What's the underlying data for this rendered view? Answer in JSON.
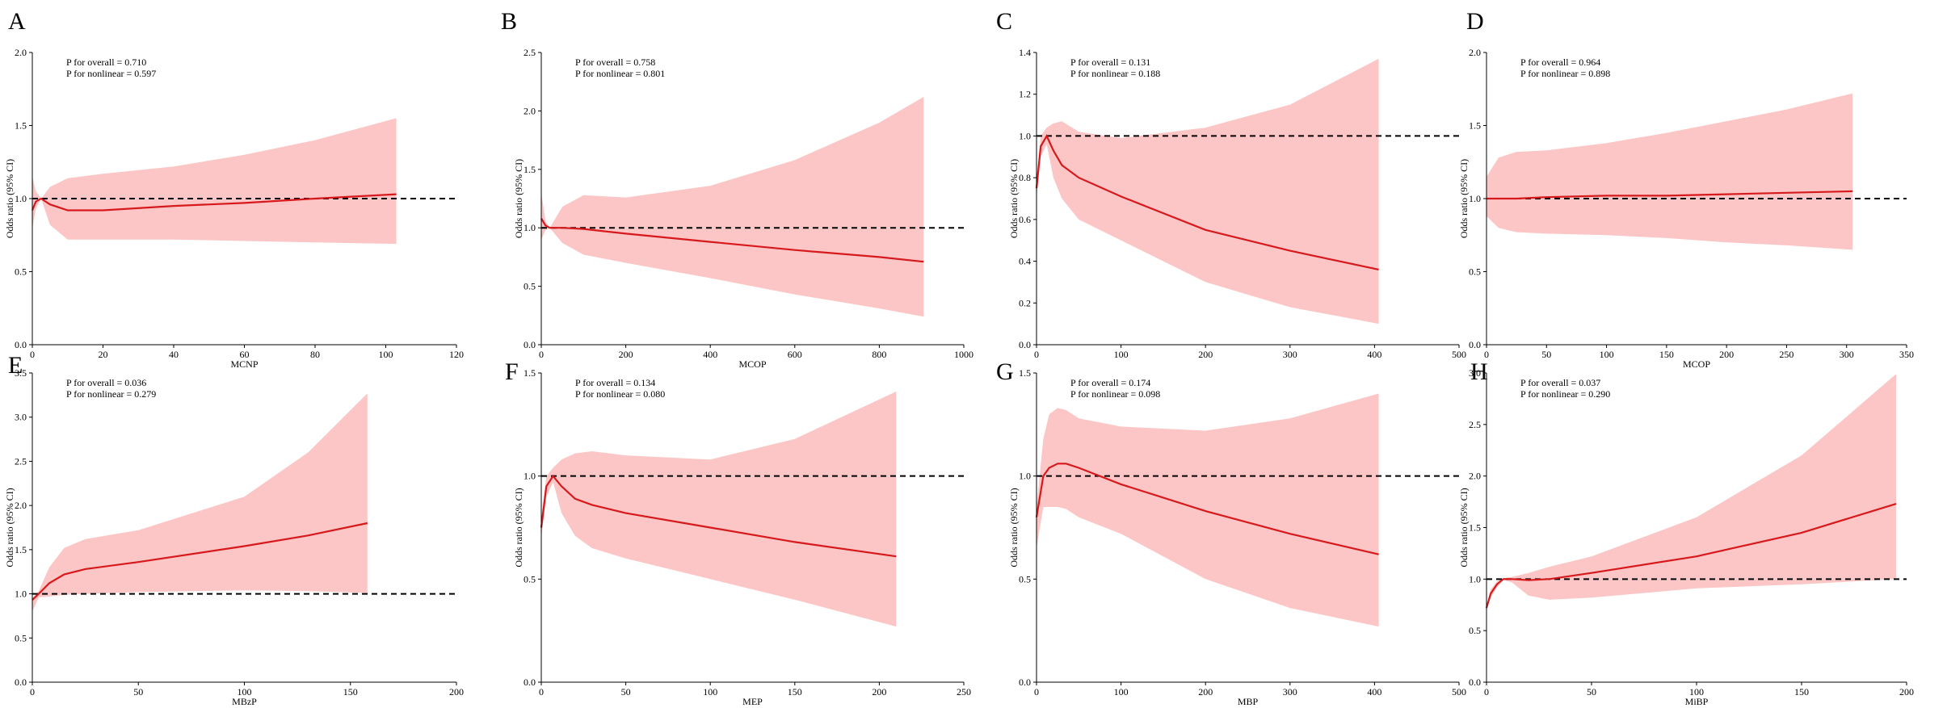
{
  "figure_title": "",
  "colors": {
    "ci_band": "#fcc6c6",
    "curve": "#d7191c",
    "reference": "#000000"
  },
  "chart_data": [
    {
      "type": "line",
      "panel": "A",
      "xlabel": "MCNP",
      "ylabel": "Odds ratio (95% CI)",
      "xlim": [
        0,
        120
      ],
      "ylim": [
        0.0,
        2.0
      ],
      "xticks": [
        "0",
        "20",
        "40",
        "60",
        "80",
        "100",
        "120"
      ],
      "yticks": [
        "0.0",
        "0.5",
        "1.0",
        "1.5",
        "2.0"
      ],
      "reference_y": 1.0,
      "p_overall": "P for overall = 0.710",
      "p_nonlinear": "P for nonlinear = 0.597",
      "series": [
        {
          "name": "Odds ratio",
          "x": [
            0,
            1,
            2.5,
            5,
            10,
            20,
            40,
            60,
            80,
            103
          ],
          "y": [
            0.92,
            0.98,
            1.0,
            0.96,
            0.92,
            0.92,
            0.95,
            0.97,
            1.0,
            1.03
          ]
        },
        {
          "name": "95% CI upper",
          "x": [
            0,
            1,
            2.5,
            5,
            10,
            20,
            40,
            60,
            80,
            103
          ],
          "y": [
            1.15,
            1.05,
            1.0,
            1.08,
            1.14,
            1.17,
            1.22,
            1.3,
            1.4,
            1.55
          ]
        },
        {
          "name": "95% CI lower",
          "x": [
            0,
            1,
            2.5,
            5,
            10,
            20,
            40,
            60,
            80,
            103
          ],
          "y": [
            0.8,
            0.93,
            1.0,
            0.82,
            0.72,
            0.72,
            0.72,
            0.71,
            0.7,
            0.69
          ]
        }
      ]
    },
    {
      "type": "line",
      "panel": "B",
      "xlabel": "MCOP",
      "ylabel": "Odds ratio (95% CI)",
      "xlim": [
        0,
        1000
      ],
      "ylim": [
        0.0,
        2.5
      ],
      "xticks": [
        "0",
        "200",
        "400",
        "600",
        "800",
        "1000"
      ],
      "yticks": [
        "0.0",
        "0.5",
        "1.0",
        "1.5",
        "2.0",
        "2.5"
      ],
      "reference_y": 1.0,
      "p_overall": "P for overall = 0.758",
      "p_nonlinear": "P for nonlinear = 0.801",
      "series": [
        {
          "name": "Odds ratio",
          "x": [
            0,
            10,
            20,
            50,
            100,
            200,
            400,
            600,
            800,
            905
          ],
          "y": [
            1.08,
            1.02,
            1.0,
            1.0,
            0.99,
            0.95,
            0.88,
            0.81,
            0.75,
            0.71
          ]
        },
        {
          "name": "95% CI upper",
          "x": [
            0,
            10,
            20,
            50,
            100,
            200,
            400,
            600,
            800,
            905
          ],
          "y": [
            1.3,
            1.06,
            1.0,
            1.18,
            1.28,
            1.26,
            1.36,
            1.58,
            1.9,
            2.12
          ]
        },
        {
          "name": "95% CI lower",
          "x": [
            0,
            10,
            20,
            50,
            100,
            200,
            400,
            600,
            800,
            905
          ],
          "y": [
            0.9,
            0.98,
            1.0,
            0.87,
            0.77,
            0.7,
            0.57,
            0.43,
            0.31,
            0.24
          ]
        }
      ]
    },
    {
      "type": "line",
      "panel": "C",
      "xlabel": "",
      "ylabel": "Odds ratio (95% CI)",
      "xlim": [
        0,
        500
      ],
      "ylim": [
        0.0,
        1.4
      ],
      "xticks": [
        "0",
        "100",
        "200",
        "300",
        "400",
        "500"
      ],
      "yticks": [
        "0.0",
        "0.2",
        "0.4",
        "0.6",
        "0.8",
        "1.0",
        "1.2",
        "1.4"
      ],
      "reference_y": 1.0,
      "p_overall": "P for overall = 0.131",
      "p_nonlinear": "P for nonlinear = 0.188",
      "series": [
        {
          "name": "Odds ratio",
          "x": [
            0,
            5,
            12,
            20,
            30,
            50,
            100,
            200,
            300,
            405
          ],
          "y": [
            0.75,
            0.95,
            1.0,
            0.93,
            0.86,
            0.8,
            0.71,
            0.55,
            0.45,
            0.36
          ]
        },
        {
          "name": "95% CI upper",
          "x": [
            0,
            5,
            12,
            20,
            30,
            50,
            100,
            200,
            300,
            405
          ],
          "y": [
            0.8,
            1.0,
            1.04,
            1.06,
            1.07,
            1.02,
            0.99,
            1.04,
            1.15,
            1.37
          ]
        },
        {
          "name": "95% CI lower",
          "x": [
            0,
            5,
            12,
            20,
            30,
            50,
            100,
            200,
            300,
            405
          ],
          "y": [
            0.7,
            0.9,
            0.96,
            0.8,
            0.7,
            0.6,
            0.5,
            0.3,
            0.18,
            0.1
          ]
        }
      ]
    },
    {
      "type": "line",
      "panel": "D",
      "xlabel": "MCOP",
      "ylabel": "Odds ratio (95% CI)",
      "xlim": [
        0,
        350
      ],
      "ylim": [
        0.0,
        2.0
      ],
      "xticks": [
        "0",
        "50",
        "100",
        "150",
        "200",
        "250",
        "300",
        "350"
      ],
      "yticks": [
        "0.0",
        "0.5",
        "1.0",
        "1.5",
        "2.0"
      ],
      "reference_y": 1.0,
      "p_overall": "P for overall = 0.964",
      "p_nonlinear": "P for nonlinear = 0.898",
      "series": [
        {
          "name": "Odds ratio",
          "x": [
            0,
            10,
            25,
            50,
            100,
            150,
            200,
            250,
            305
          ],
          "y": [
            1.0,
            1.0,
            1.0,
            1.01,
            1.02,
            1.02,
            1.03,
            1.04,
            1.05
          ]
        },
        {
          "name": "95% CI upper",
          "x": [
            0,
            10,
            25,
            50,
            100,
            150,
            200,
            250,
            305
          ],
          "y": [
            1.15,
            1.28,
            1.32,
            1.33,
            1.38,
            1.45,
            1.53,
            1.61,
            1.72
          ]
        },
        {
          "name": "95% CI lower",
          "x": [
            0,
            10,
            25,
            50,
            100,
            150,
            200,
            250,
            305
          ],
          "y": [
            0.88,
            0.8,
            0.77,
            0.76,
            0.75,
            0.73,
            0.7,
            0.68,
            0.65
          ]
        }
      ]
    },
    {
      "type": "line",
      "panel": "E",
      "xlabel": "MBzP",
      "ylabel": "Odds ratio (95% CI)",
      "xlim": [
        0,
        200
      ],
      "ylim": [
        0.0,
        3.5
      ],
      "xticks": [
        "0",
        "50",
        "100",
        "150",
        "200"
      ],
      "yticks": [
        "0.0",
        "0.5",
        "1.0",
        "1.5",
        "2.0",
        "2.5",
        "3.0",
        "3.5"
      ],
      "reference_y": 1.0,
      "p_overall": "P for overall = 0.036",
      "p_nonlinear": "P for nonlinear = 0.279",
      "series": [
        {
          "name": "Odds ratio",
          "x": [
            0,
            3,
            8,
            15,
            25,
            50,
            100,
            130,
            158
          ],
          "y": [
            0.93,
            1.0,
            1.12,
            1.22,
            1.28,
            1.36,
            1.54,
            1.66,
            1.8
          ]
        },
        {
          "name": "95% CI upper",
          "x": [
            0,
            3,
            8,
            15,
            25,
            50,
            100,
            130,
            158
          ],
          "y": [
            0.95,
            1.03,
            1.3,
            1.52,
            1.62,
            1.72,
            2.1,
            2.6,
            3.27
          ]
        },
        {
          "name": "95% CI lower",
          "x": [
            0,
            3,
            8,
            15,
            25,
            50,
            100,
            130,
            158
          ],
          "y": [
            0.8,
            0.96,
            0.97,
            0.99,
            1.0,
            1.02,
            1.04,
            1.03,
            1.01
          ]
        }
      ]
    },
    {
      "type": "line",
      "panel": "F",
      "xlabel": "MEP",
      "ylabel": "Odds ratio (95% CI)",
      "xlim": [
        0,
        250
      ],
      "ylim": [
        0.0,
        1.5
      ],
      "xticks": [
        "0",
        "50",
        "100",
        "150",
        "200",
        "250"
      ],
      "yticks": [
        "0.0",
        "0.5",
        "1.0",
        "1.5"
      ],
      "reference_y": 1.0,
      "p_overall": "P for overall = 0.134",
      "p_nonlinear": "P for nonlinear = 0.080",
      "series": [
        {
          "name": "Odds ratio",
          "x": [
            0,
            3,
            7,
            12,
            20,
            30,
            50,
            100,
            150,
            210
          ],
          "y": [
            0.75,
            0.95,
            1.0,
            0.95,
            0.89,
            0.86,
            0.82,
            0.75,
            0.68,
            0.61
          ]
        },
        {
          "name": "95% CI upper",
          "x": [
            0,
            3,
            7,
            12,
            20,
            30,
            50,
            100,
            150,
            210
          ],
          "y": [
            0.8,
            1.0,
            1.04,
            1.08,
            1.11,
            1.12,
            1.1,
            1.08,
            1.18,
            1.41
          ]
        },
        {
          "name": "95% CI lower",
          "x": [
            0,
            3,
            7,
            12,
            20,
            30,
            50,
            100,
            150,
            210
          ],
          "y": [
            0.7,
            0.9,
            0.97,
            0.82,
            0.71,
            0.65,
            0.6,
            0.5,
            0.4,
            0.27
          ]
        }
      ]
    },
    {
      "type": "line",
      "panel": "G",
      "xlabel": "MBP",
      "ylabel": "Odds ratio (95% CI)",
      "xlim": [
        0,
        500
      ],
      "ylim": [
        0.0,
        1.5
      ],
      "xticks": [
        "0",
        "100",
        "200",
        "300",
        "400",
        "500"
      ],
      "yticks": [
        "0.0",
        "0.5",
        "1.0",
        "1.5"
      ],
      "reference_y": 1.0,
      "p_overall": "P for overall = 0.174",
      "p_nonlinear": "P for nonlinear = 0.098",
      "series": [
        {
          "name": "Odds ratio",
          "x": [
            0,
            8,
            15,
            25,
            35,
            50,
            100,
            200,
            300,
            405
          ],
          "y": [
            0.8,
            1.0,
            1.04,
            1.06,
            1.06,
            1.04,
            0.96,
            0.83,
            0.72,
            0.62
          ]
        },
        {
          "name": "95% CI upper",
          "x": [
            0,
            8,
            15,
            25,
            35,
            50,
            100,
            200,
            300,
            405
          ],
          "y": [
            0.85,
            1.18,
            1.3,
            1.33,
            1.32,
            1.28,
            1.24,
            1.22,
            1.28,
            1.4
          ]
        },
        {
          "name": "95% CI lower",
          "x": [
            0,
            8,
            15,
            25,
            35,
            50,
            100,
            200,
            300,
            405
          ],
          "y": [
            0.65,
            0.85,
            0.85,
            0.85,
            0.84,
            0.8,
            0.72,
            0.5,
            0.36,
            0.27
          ]
        }
      ]
    },
    {
      "type": "line",
      "panel": "H",
      "xlabel": "MiBP",
      "ylabel": "Odds ratio (95% CI)",
      "xlim": [
        0,
        200
      ],
      "ylim": [
        0.0,
        3.0
      ],
      "xticks": [
        "0",
        "50",
        "100",
        "150",
        "200"
      ],
      "yticks": [
        "0.0",
        "0.5",
        "1.0",
        "1.5",
        "2.0",
        "2.5",
        "3.0"
      ],
      "reference_y": 1.0,
      "p_overall": "P for overall = 0.037",
      "p_nonlinear": "P for nonlinear = 0.290",
      "series": [
        {
          "name": "Odds ratio",
          "x": [
            0,
            2,
            5,
            8,
            12,
            20,
            30,
            50,
            100,
            150,
            195
          ],
          "y": [
            0.72,
            0.86,
            0.95,
            1.0,
            1.0,
            0.99,
            1.0,
            1.06,
            1.22,
            1.45,
            1.73
          ]
        },
        {
          "name": "95% CI upper",
          "x": [
            0,
            2,
            5,
            8,
            12,
            20,
            30,
            50,
            100,
            150,
            195
          ],
          "y": [
            0.74,
            0.9,
            0.98,
            1.01,
            1.02,
            1.06,
            1.12,
            1.22,
            1.6,
            2.2,
            2.99
          ]
        },
        {
          "name": "95% CI lower",
          "x": [
            0,
            2,
            5,
            8,
            12,
            20,
            30,
            50,
            100,
            150,
            195
          ],
          "y": [
            0.7,
            0.82,
            0.92,
            0.99,
            0.97,
            0.84,
            0.8,
            0.82,
            0.91,
            0.95,
            1.0
          ]
        }
      ]
    }
  ]
}
